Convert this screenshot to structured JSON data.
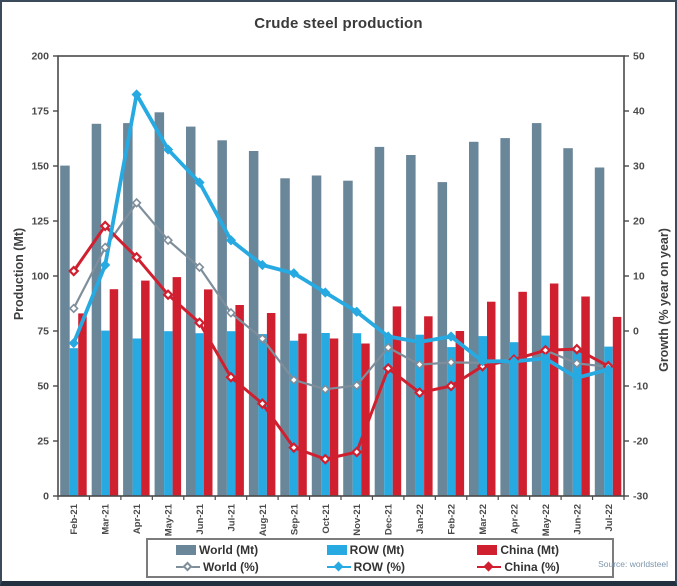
{
  "title": "Crude steel production",
  "source": "Source: worldsteel",
  "colors": {
    "world_bar": "#6a8699",
    "row_bar": "#27a9e1",
    "china_bar": "#d02030",
    "world_line": "#7e8e9b",
    "row_line": "#27a9e1",
    "china_line": "#d02030",
    "axis_text": "#4a4a4a",
    "frame": "#4a4a4a"
  },
  "chart_data": {
    "type": "bar",
    "subtype": "grouped bars with dual-axis growth lines",
    "title": "Crude steel production",
    "ylabel_left": "Production (Mt)",
    "ylabel_right": "Growth (% year on year)",
    "ylim_left": [
      0,
      200
    ],
    "ytick_step_left": 25,
    "ylim_right": [
      -30,
      50
    ],
    "ytick_step_right": 10,
    "grid": false,
    "legend_position": "bottom",
    "categories": [
      "Feb-21",
      "Mar-21",
      "Apr-21",
      "May-21",
      "Jun-21",
      "Jul-21",
      "Aug-21",
      "Sep-21",
      "Oct-21",
      "Nov-21",
      "Dec-21",
      "Jan-22",
      "Feb-22",
      "Mar-22",
      "Apr-22",
      "May-22",
      "Jun-22",
      "Jul-22"
    ],
    "series": [
      {
        "name": "World (Mt)",
        "type": "bar",
        "axis": "left",
        "values": [
          150.2,
          169.2,
          169.5,
          174.4,
          167.9,
          161.7,
          156.8,
          144.4,
          145.7,
          143.3,
          158.7,
          155.0,
          142.7,
          161.0,
          162.7,
          169.5,
          158.1,
          149.3
        ]
      },
      {
        "name": "ROW (Mt)",
        "type": "bar",
        "axis": "left",
        "values": [
          67.2,
          75.2,
          71.6,
          74.9,
          74.0,
          74.9,
          73.6,
          70.6,
          74.1,
          74.0,
          72.5,
          73.3,
          67.7,
          72.7,
          69.9,
          72.9,
          67.4,
          67.9
        ]
      },
      {
        "name": "China (Mt)",
        "type": "bar",
        "axis": "left",
        "values": [
          83.0,
          94.0,
          97.9,
          99.5,
          93.9,
          86.8,
          83.2,
          73.8,
          71.6,
          69.3,
          86.2,
          81.7,
          75.0,
          88.3,
          92.8,
          96.6,
          90.7,
          81.4
        ]
      },
      {
        "name": "World (%)",
        "type": "line",
        "axis": "right",
        "values": [
          4.1,
          15.2,
          23.3,
          16.5,
          11.6,
          3.3,
          -1.4,
          -8.9,
          -10.6,
          -9.9,
          -3.0,
          -6.1,
          -5.7,
          -5.8,
          -5.1,
          -3.5,
          -5.9,
          -6.5
        ]
      },
      {
        "name": "ROW (%)",
        "type": "line",
        "axis": "right",
        "values": [
          -2.2,
          12.0,
          43.0,
          33.0,
          27.0,
          16.5,
          12.0,
          10.5,
          7.0,
          3.5,
          -1.0,
          -2.0,
          -1.0,
          -5.5,
          -5.5,
          -5.0,
          -8.5,
          -7.0
        ]
      },
      {
        "name": "China (%)",
        "type": "line",
        "axis": "right",
        "values": [
          10.9,
          19.1,
          13.4,
          6.6,
          1.5,
          -8.4,
          -13.2,
          -21.2,
          -23.3,
          -22.0,
          -6.8,
          -11.2,
          -10.0,
          -6.4,
          -5.2,
          -3.5,
          -3.3,
          -6.4
        ]
      }
    ]
  },
  "legend": {
    "items": [
      {
        "label": "World (Mt)"
      },
      {
        "label": "ROW (Mt)"
      },
      {
        "label": "China (Mt)"
      },
      {
        "label": "World (%)"
      },
      {
        "label": "ROW (%)"
      },
      {
        "label": "China (%)"
      }
    ]
  }
}
